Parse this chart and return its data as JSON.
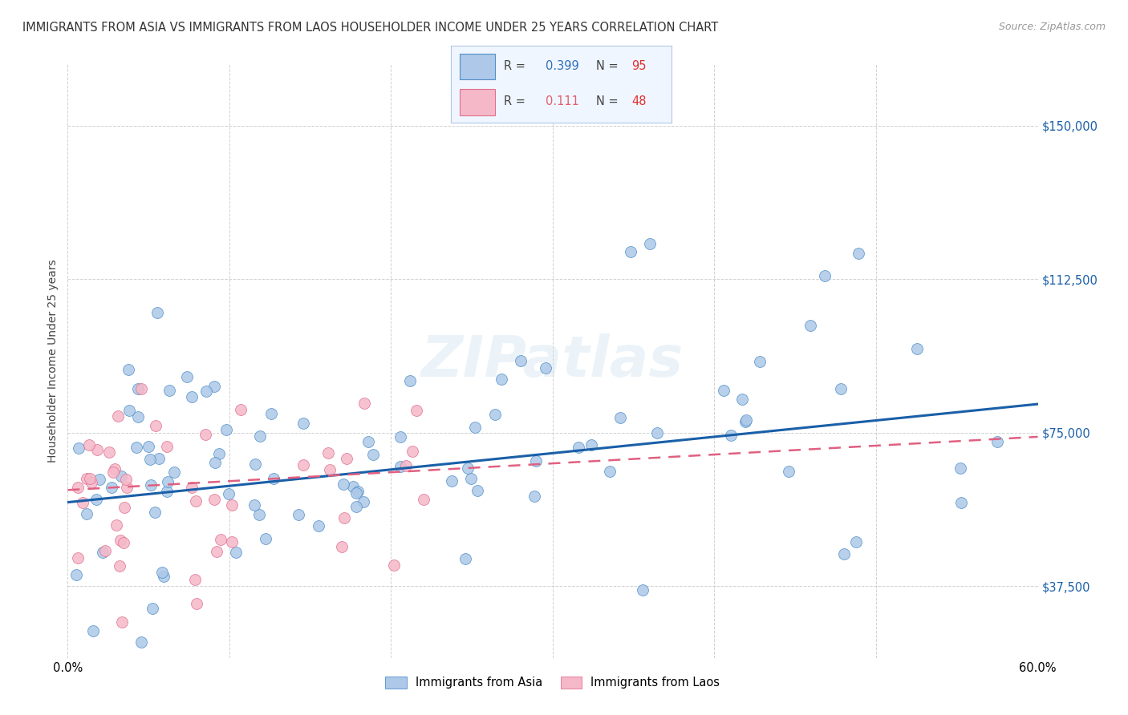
{
  "title": "IMMIGRANTS FROM ASIA VS IMMIGRANTS FROM LAOS HOUSEHOLDER INCOME UNDER 25 YEARS CORRELATION CHART",
  "source": "Source: ZipAtlas.com",
  "ylabel": "Householder Income Under 25 years",
  "xmin": 0.0,
  "xmax": 0.6,
  "ymin": 20000,
  "ymax": 165000,
  "yticks": [
    37500,
    75000,
    112500,
    150000
  ],
  "ytick_labels": [
    "$37,500",
    "$75,000",
    "$112,500",
    "$150,000"
  ],
  "xticks": [
    0.0,
    0.1,
    0.2,
    0.3,
    0.4,
    0.5,
    0.6
  ],
  "xtick_labels": [
    "0.0%",
    "",
    "",
    "",
    "",
    "",
    "60.0%"
  ],
  "asia_R": 0.399,
  "asia_N": 95,
  "laos_R": 0.111,
  "laos_N": 48,
  "asia_color": "#adc8e8",
  "laos_color": "#f5b8c8",
  "asia_edge_color": "#5090c8",
  "laos_edge_color": "#e07090",
  "asia_line_color": "#1a5fa8",
  "laos_line_color": "#e06080",
  "watermark": "ZIPatlas",
  "background_color": "#ffffff",
  "title_fontsize": 10.5,
  "legend_box_color": "#f0f6ff",
  "legend_box_edge": "#b0c8e8",
  "asia_legend_R_color": "#3070b8",
  "laos_legend_R_color": "#e06070",
  "N_color": "#e03030",
  "asia_line_x0": 0.0,
  "asia_line_y0": 58000,
  "asia_line_x1": 0.6,
  "asia_line_y1": 82000,
  "laos_line_x0": 0.0,
  "laos_line_y0": 61000,
  "laos_line_x1": 0.6,
  "laos_line_y1": 74000
}
